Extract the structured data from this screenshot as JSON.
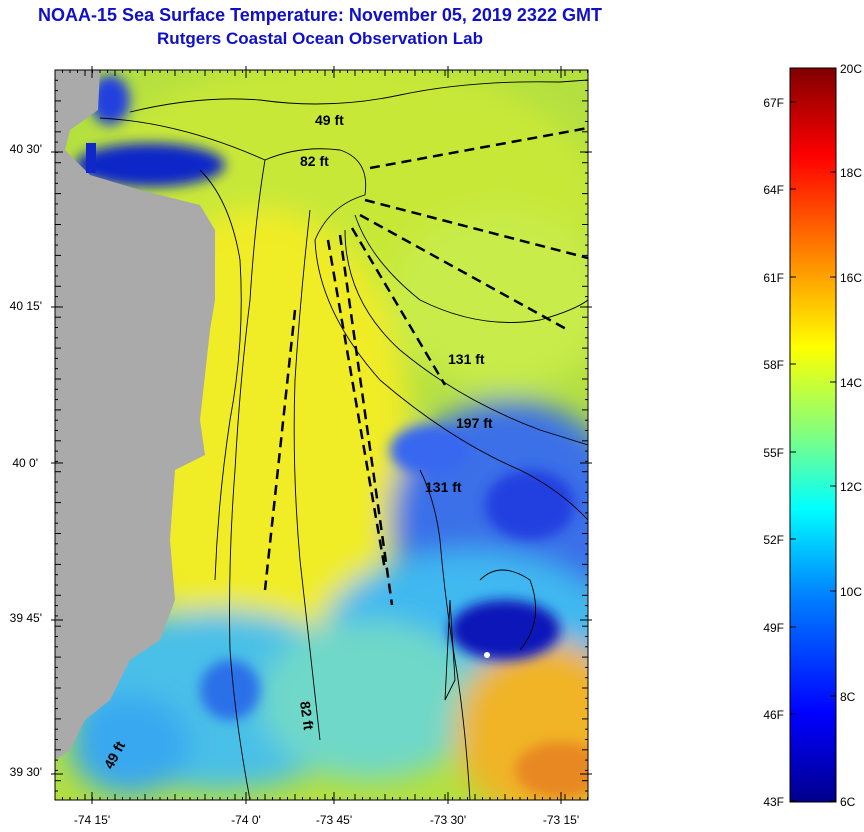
{
  "title": "NOAA-15 Sea Surface Temperature:  November 05, 2019 2322 GMT",
  "subtitle": "Rutgers Coastal Ocean Observation Lab",
  "lat_ticks": [
    "40 30'",
    "40 15'",
    "40 0'",
    "39 45'",
    "39 30'"
  ],
  "lon_ticks": [
    "-74 15'",
    "-74 0'",
    "-73 45'",
    "-73 30'",
    "-73 15'"
  ],
  "depth_labels": [
    "49 ft",
    "82 ft",
    "131 ft",
    "197 ft",
    "131 ft",
    "82 ft",
    "49 ft"
  ],
  "colorbar": {
    "celsius": [
      "20C",
      "18C",
      "16C",
      "14C",
      "12C",
      "10C",
      "8C",
      "6C"
    ],
    "fahrenheit": [
      "67F",
      "64F",
      "61F",
      "58F",
      "55F",
      "52F",
      "49F",
      "46F",
      "43F"
    ],
    "colors": [
      "#00008c",
      "#0000ff",
      "#0080ff",
      "#00ffff",
      "#80ff80",
      "#ffff00",
      "#ff8000",
      "#ff0000",
      "#800000"
    ]
  },
  "colors": {
    "title": "#1010c8",
    "land": "#aaaaaa",
    "sea_warm": "#f0ee2a",
    "sea_mid": "#9ee860",
    "sea_cool": "#38c8f0",
    "sea_cold": "#1c3ce0",
    "sea_orange": "#f0b020"
  }
}
